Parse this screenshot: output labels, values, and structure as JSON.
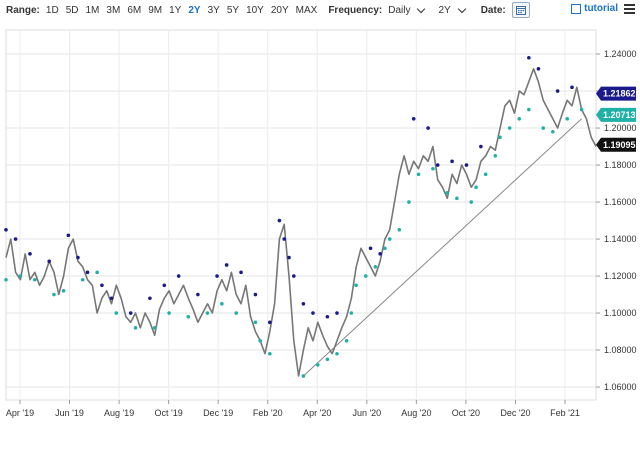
{
  "toolbar": {
    "range_label": "Range:",
    "ranges": [
      "1D",
      "5D",
      "1M",
      "3M",
      "6M",
      "9M",
      "1Y",
      "2Y",
      "3Y",
      "5Y",
      "10Y",
      "20Y",
      "MAX"
    ],
    "active_range": "2Y",
    "frequency_label": "Frequency:",
    "frequency_value": "Daily",
    "period_value": "2Y",
    "date_label": "Date:",
    "brand": "tutorial",
    "icons": [
      "chevron-down-icon",
      "calendar-icon",
      "hamburger-menu-icon"
    ]
  },
  "chart_data": {
    "type": "line",
    "x_labels": [
      "Apr '19",
      "Jun '19",
      "Aug '19",
      "Oct '19",
      "Dec '19",
      "Feb '20",
      "Apr '20",
      "Jun '20",
      "Aug '20",
      "Oct '20",
      "Dec '20",
      "Feb '21"
    ],
    "y_ticks": [
      "1.24000",
      "1.22000",
      "1.20000",
      "1.18000",
      "1.16000",
      "1.14000",
      "1.12000",
      "1.10000",
      "1.08000",
      "1.06000"
    ],
    "ylim": [
      1.053,
      1.253
    ],
    "series": [
      {
        "type": "line",
        "color": "#777777",
        "values": [
          1.13,
          1.14,
          1.122,
          1.118,
          1.132,
          1.118,
          1.122,
          1.115,
          1.12,
          1.128,
          1.122,
          1.11,
          1.12,
          1.135,
          1.14,
          1.128,
          1.125,
          1.118,
          1.115,
          1.1,
          1.108,
          1.112,
          1.105,
          1.115,
          1.108,
          1.098,
          1.095,
          1.1,
          1.092,
          1.1,
          1.095,
          1.088,
          1.102,
          1.108,
          1.112,
          1.105,
          1.11,
          1.115,
          1.108,
          1.102,
          1.095,
          1.1,
          1.105,
          1.1,
          1.112,
          1.118,
          1.112,
          1.122,
          1.11,
          1.105,
          1.115,
          1.098,
          1.09,
          1.085,
          1.078,
          1.09,
          1.105,
          1.14,
          1.148,
          1.12,
          1.085,
          1.066,
          1.08,
          1.092,
          1.085,
          1.095,
          1.088,
          1.082,
          1.078,
          1.085,
          1.092,
          1.098,
          1.108,
          1.125,
          1.135,
          1.13,
          1.125,
          1.12,
          1.128,
          1.14,
          1.145,
          1.16,
          1.175,
          1.185,
          1.175,
          1.182,
          1.178,
          1.185,
          1.182,
          1.19,
          1.172,
          1.168,
          1.162,
          1.175,
          1.17,
          1.18,
          1.175,
          1.168,
          1.172,
          1.182,
          1.185,
          1.19,
          1.188,
          1.2,
          1.212,
          1.215,
          1.208,
          1.22,
          1.218,
          1.225,
          1.232,
          1.225,
          1.215,
          1.21,
          1.205,
          1.2,
          1.208,
          1.215,
          1.212,
          1.222,
          1.21,
          1.205,
          1.195,
          1.19
        ]
      },
      {
        "type": "dots",
        "color": "#1a1a8c",
        "points": [
          [
            0,
            1.145
          ],
          [
            2,
            1.14
          ],
          [
            5,
            1.132
          ],
          [
            9,
            1.128
          ],
          [
            13,
            1.142
          ],
          [
            15,
            1.13
          ],
          [
            17,
            1.122
          ],
          [
            20,
            1.115
          ],
          [
            22,
            1.108
          ],
          [
            26,
            1.1
          ],
          [
            30,
            1.108
          ],
          [
            33,
            1.115
          ],
          [
            36,
            1.12
          ],
          [
            40,
            1.11
          ],
          [
            44,
            1.12
          ],
          [
            46,
            1.126
          ],
          [
            49,
            1.122
          ],
          [
            52,
            1.11
          ],
          [
            55,
            1.095
          ],
          [
            57,
            1.15
          ],
          [
            58,
            1.14
          ],
          [
            59,
            1.13
          ],
          [
            60,
            1.12
          ],
          [
            62,
            1.105
          ],
          [
            64,
            1.1
          ],
          [
            67,
            1.098
          ],
          [
            69,
            1.1
          ],
          [
            76,
            1.135
          ],
          [
            78,
            1.132
          ],
          [
            85,
            1.205
          ],
          [
            88,
            1.2
          ],
          [
            90,
            1.18
          ],
          [
            93,
            1.182
          ],
          [
            96,
            1.18
          ],
          [
            99,
            1.19
          ],
          [
            109,
            1.238
          ],
          [
            111,
            1.232
          ],
          [
            115,
            1.22
          ],
          [
            118,
            1.222
          ]
        ]
      },
      {
        "type": "dots",
        "color": "#1fb0a8",
        "points": [
          [
            0,
            1.118
          ],
          [
            3,
            1.12
          ],
          [
            6,
            1.118
          ],
          [
            10,
            1.11
          ],
          [
            12,
            1.112
          ],
          [
            16,
            1.118
          ],
          [
            19,
            1.122
          ],
          [
            23,
            1.1
          ],
          [
            27,
            1.092
          ],
          [
            31,
            1.092
          ],
          [
            34,
            1.1
          ],
          [
            38,
            1.098
          ],
          [
            42,
            1.1
          ],
          [
            45,
            1.105
          ],
          [
            48,
            1.1
          ],
          [
            52,
            1.095
          ],
          [
            53,
            1.085
          ],
          [
            55,
            1.078
          ],
          [
            62,
            1.066
          ],
          [
            65,
            1.072
          ],
          [
            67,
            1.075
          ],
          [
            69,
            1.078
          ],
          [
            71,
            1.085
          ],
          [
            72,
            1.1
          ],
          [
            73,
            1.115
          ],
          [
            75,
            1.12
          ],
          [
            77,
            1.125
          ],
          [
            79,
            1.135
          ],
          [
            80,
            1.14
          ],
          [
            82,
            1.145
          ],
          [
            84,
            1.16
          ],
          [
            86,
            1.175
          ],
          [
            89,
            1.178
          ],
          [
            92,
            1.165
          ],
          [
            94,
            1.162
          ],
          [
            97,
            1.16
          ],
          [
            98,
            1.168
          ],
          [
            100,
            1.175
          ],
          [
            102,
            1.185
          ],
          [
            103,
            1.195
          ],
          [
            105,
            1.2
          ],
          [
            107,
            1.205
          ],
          [
            109,
            1.21
          ],
          [
            112,
            1.2
          ],
          [
            114,
            1.198
          ],
          [
            117,
            1.205
          ],
          [
            120,
            1.21
          ]
        ]
      }
    ],
    "trendline": {
      "from": [
        62,
        1.066
      ],
      "to": [
        120,
        1.205
      ],
      "color": "#888888"
    },
    "last_values": [
      {
        "value": "1.21862",
        "color": "#1a1a8c"
      },
      {
        "value": "1.20713",
        "color": "#1fb0a8"
      },
      {
        "value": "1.19095",
        "color": "#111111"
      }
    ]
  }
}
